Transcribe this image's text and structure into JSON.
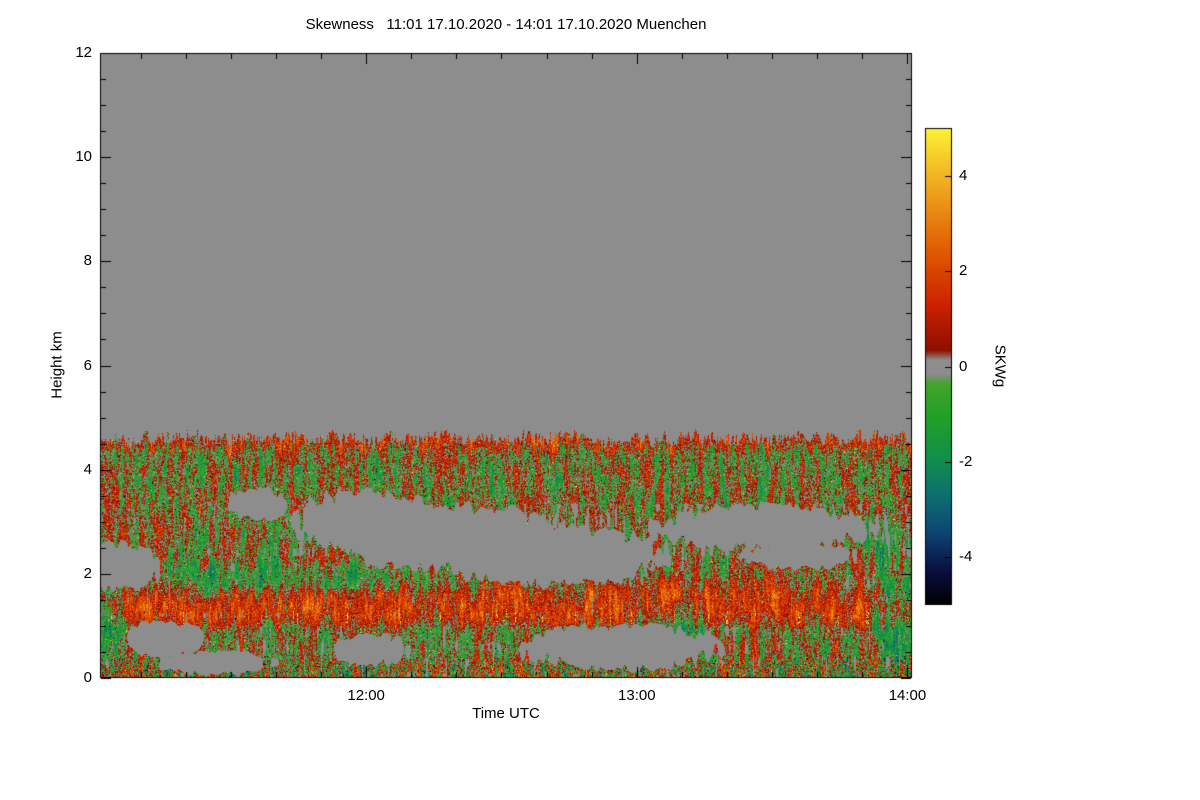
{
  "chart_data": {
    "type": "heatmap",
    "title": "Skewness   11:01 17.10.2020 - 14:01 17.10.2020 Muenchen",
    "variable": "Skewness",
    "time_start": "11:01 17.10.2020",
    "time_end": "14:01 17.10.2020",
    "station": "Muenchen",
    "xlabel": "Time UTC",
    "ylabel": "Height km",
    "duration_min": 180,
    "y_range_km": [
      0,
      12
    ],
    "y_ticks": [
      0,
      2,
      4,
      6,
      8,
      10,
      12
    ],
    "x_ticks": [
      {
        "label": "12:00",
        "minutes": 59
      },
      {
        "label": "13:00",
        "minutes": 119
      },
      {
        "label": "14:00",
        "minutes": 179
      }
    ],
    "colorbar": {
      "label": "SKWg",
      "range": [
        -5,
        5
      ],
      "ticks": [
        -4,
        -2,
        0,
        2,
        4
      ],
      "stops": [
        {
          "v": -5.0,
          "c": "#000000"
        },
        {
          "v": -4.3,
          "c": "#090f3e"
        },
        {
          "v": -3.5,
          "c": "#0c4474"
        },
        {
          "v": -2.7,
          "c": "#0e7070"
        },
        {
          "v": -1.9,
          "c": "#12904a"
        },
        {
          "v": -1.0,
          "c": "#23a226"
        },
        {
          "v": -0.35,
          "c": "#45a52c"
        },
        {
          "v": -0.15,
          "c": "#8d8d8d"
        },
        {
          "v": 0.15,
          "c": "#8d8d8d"
        },
        {
          "v": 0.35,
          "c": "#8f1000"
        },
        {
          "v": 1.3,
          "c": "#cc2200"
        },
        {
          "v": 2.3,
          "c": "#df5500"
        },
        {
          "v": 3.3,
          "c": "#ea8c15"
        },
        {
          "v": 4.3,
          "c": "#f5c72a"
        },
        {
          "v": 5.0,
          "c": "#fff233"
        }
      ]
    },
    "no_signal_color": "#8d8d8d",
    "features": {
      "cloud_top_km": 4.6,
      "red_band_center": 1.35,
      "red_band_halfwidth": 0.4,
      "voids": [
        [
          35,
          3.35,
          7,
          0.3
        ],
        [
          60,
          3.05,
          17,
          0.55
        ],
        [
          78,
          2.7,
          26,
          0.6
        ],
        [
          100,
          2.35,
          26,
          0.55
        ],
        [
          147,
          2.9,
          24,
          0.42
        ],
        [
          155,
          2.35,
          12,
          0.25
        ],
        [
          115,
          0.6,
          22,
          0.42
        ],
        [
          60,
          0.55,
          8,
          0.3
        ],
        [
          5,
          2.15,
          9,
          0.45
        ],
        [
          14,
          0.75,
          8,
          0.35
        ],
        [
          25,
          0.3,
          12,
          0.22
        ]
      ],
      "green_blobs": [
        [
          40,
          2.0,
          35,
          0.35,
          1.0
        ],
        [
          127,
          1.05,
          10,
          0.5,
          1.5
        ],
        [
          176,
          1.2,
          7,
          1.1,
          1.8
        ],
        [
          174,
          2.6,
          8,
          0.5,
          1.2
        ],
        [
          2,
          1.1,
          5,
          1.3,
          1.4
        ]
      ],
      "red_blobs": [
        [
          125,
          1.75,
          60,
          0.25,
          0.9
        ]
      ]
    }
  }
}
